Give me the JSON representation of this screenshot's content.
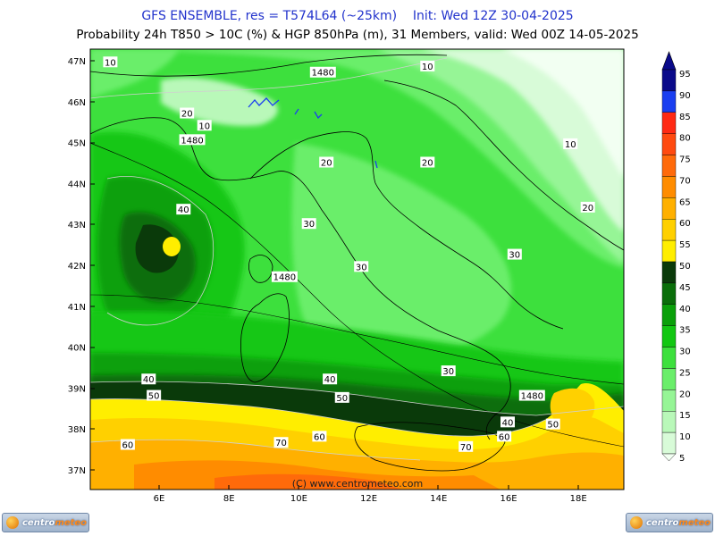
{
  "header": {
    "line1": "GFS ENSEMBLE, res = T574L64 (~25km)    Init: Wed 12Z 30-04-2025",
    "line2": "Probability 24h T850 > 10C (%) & HGP 850hPa (m), 31 Members, valid: Wed 00Z 14-05-2025"
  },
  "axes": {
    "lat_labels": [
      "47N",
      "46N",
      "45N",
      "44N",
      "43N",
      "42N",
      "41N",
      "40N",
      "39N",
      "38N",
      "37N"
    ],
    "lon_labels": [
      "6E",
      "8E",
      "10E",
      "12E",
      "14E",
      "16E",
      "18E"
    ]
  },
  "legend": {
    "levels": [
      "95",
      "90",
      "85",
      "80",
      "75",
      "70",
      "65",
      "60",
      "55",
      "50",
      "45",
      "40",
      "35",
      "30",
      "25",
      "20",
      "15",
      "10",
      "5"
    ],
    "colors": [
      "#0a0a8a",
      "#1a3ff0",
      "#ff2a14",
      "#ff4a10",
      "#ff6a0a",
      "#ff8c00",
      "#ffb000",
      "#ffd000",
      "#ffee00",
      "#0a3a0a",
      "#0a6e0a",
      "#0aa00a",
      "#12c712",
      "#3de03d",
      "#6aee6a",
      "#96f596",
      "#b9f8b9",
      "#d8fbd8",
      "#f2fff2"
    ]
  },
  "contour_labels": [
    {
      "text": "10",
      "lon": 4.6,
      "lat": 46.95
    },
    {
      "text": "1480",
      "lon": 10.7,
      "lat": 46.7
    },
    {
      "text": "10",
      "lon": 13.7,
      "lat": 46.85
    },
    {
      "text": "20",
      "lon": 6.8,
      "lat": 45.7
    },
    {
      "text": "10",
      "lon": 7.3,
      "lat": 45.4
    },
    {
      "text": "1480",
      "lon": 6.95,
      "lat": 45.05
    },
    {
      "text": "10",
      "lon": 17.8,
      "lat": 44.95
    },
    {
      "text": "20",
      "lon": 10.8,
      "lat": 44.5
    },
    {
      "text": "20",
      "lon": 13.7,
      "lat": 44.5
    },
    {
      "text": "40",
      "lon": 6.7,
      "lat": 43.35
    },
    {
      "text": "20",
      "lon": 18.3,
      "lat": 43.4
    },
    {
      "text": "30",
      "lon": 10.3,
      "lat": 43.0
    },
    {
      "text": "30",
      "lon": 16.2,
      "lat": 42.25
    },
    {
      "text": "30",
      "lon": 11.8,
      "lat": 41.95
    },
    {
      "text": "1480",
      "lon": 9.6,
      "lat": 41.7
    },
    {
      "text": "30",
      "lon": 14.3,
      "lat": 39.4
    },
    {
      "text": "40",
      "lon": 5.7,
      "lat": 39.2
    },
    {
      "text": "40",
      "lon": 10.9,
      "lat": 39.2
    },
    {
      "text": "1480",
      "lon": 16.7,
      "lat": 38.8
    },
    {
      "text": "50",
      "lon": 5.85,
      "lat": 38.8
    },
    {
      "text": "50",
      "lon": 11.25,
      "lat": 38.75
    },
    {
      "text": "40",
      "lon": 16.0,
      "lat": 38.15
    },
    {
      "text": "50",
      "lon": 17.3,
      "lat": 38.1
    },
    {
      "text": "60",
      "lon": 15.9,
      "lat": 37.8
    },
    {
      "text": "60",
      "lon": 10.6,
      "lat": 37.8
    },
    {
      "text": "60",
      "lon": 5.1,
      "lat": 37.6
    },
    {
      "text": "70",
      "lon": 9.5,
      "lat": 37.65
    },
    {
      "text": "70",
      "lon": 14.8,
      "lat": 37.55
    }
  ],
  "copyright": "(C) www.centrometeo.com",
  "logos": {
    "left": {
      "w1": "centro",
      "w2": "meteo"
    },
    "right": {
      "w1": "centro",
      "w2": "meteo"
    }
  }
}
